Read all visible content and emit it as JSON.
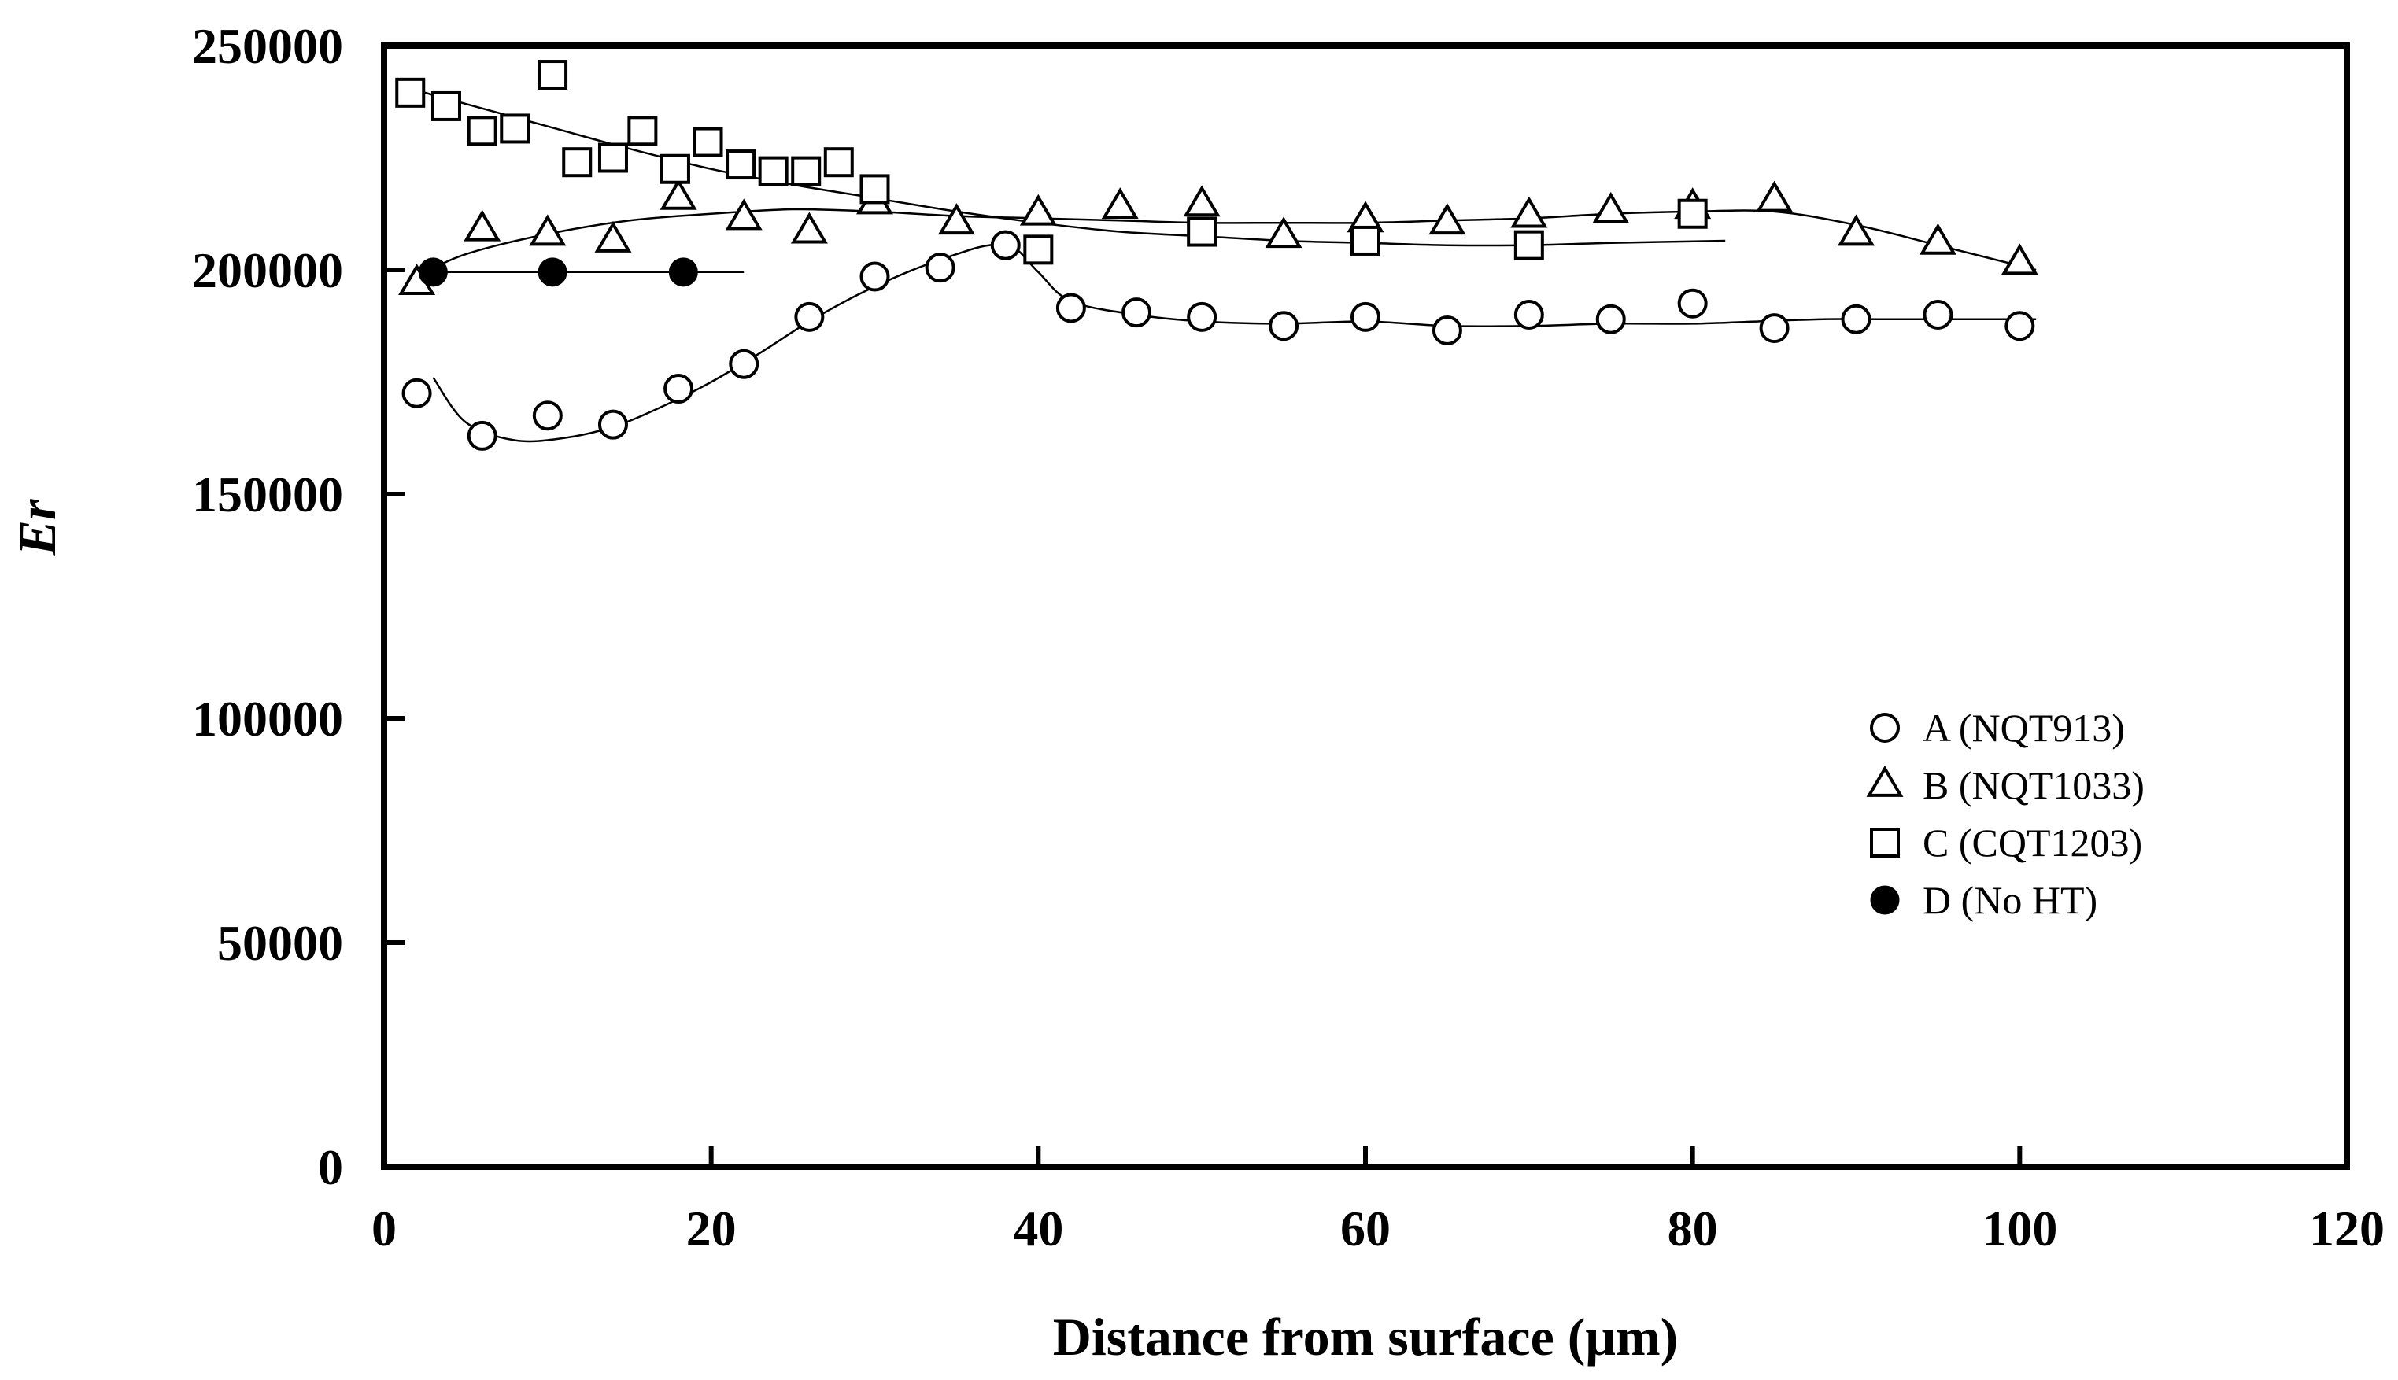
{
  "chart_data": {
    "type": "scatter",
    "title": "",
    "xlabel": "Distance from surface (μm)",
    "ylabel": "Er",
    "xlim": [
      0,
      120
    ],
    "ylim": [
      0,
      250000
    ],
    "xticks": [
      0,
      20,
      40,
      60,
      80,
      100,
      120
    ],
    "yticks": [
      0,
      50000,
      100000,
      150000,
      200000,
      250000
    ],
    "xtick_labels": [
      "0",
      "20",
      "40",
      "60",
      "80",
      "100",
      "120"
    ],
    "ytick_labels": [
      "0",
      "50000",
      "100000",
      "150000",
      "200000",
      "250000"
    ],
    "grid": false,
    "legend_position": "center-right",
    "series": [
      {
        "name": "A (NQT913)",
        "marker": "circle-open",
        "x": [
          2,
          6,
          10,
          14,
          18,
          22,
          26,
          30,
          34,
          38,
          42,
          46,
          50,
          55,
          60,
          65,
          70,
          75,
          80,
          85,
          90,
          95,
          100
        ],
        "y": [
          172500,
          163000,
          167500,
          165500,
          173500,
          179000,
          189500,
          198500,
          200500,
          205500,
          191500,
          190500,
          189500,
          187500,
          189500,
          186500,
          190000,
          189000,
          192500,
          187000,
          189000,
          190000,
          187500
        ],
        "trend_x": [
          3,
          5,
          8,
          11,
          14,
          17,
          20,
          23,
          26,
          29,
          32,
          35,
          37,
          38.5,
          40,
          42,
          46,
          50,
          55,
          60,
          65,
          70,
          75,
          80,
          84,
          88,
          92,
          96,
          101
        ],
        "trend_y": [
          176000,
          166000,
          162000,
          162500,
          165000,
          169500,
          175000,
          181500,
          188500,
          194500,
          199500,
          203500,
          205500,
          205000,
          199500,
          193000,
          190000,
          188500,
          188000,
          188500,
          187500,
          187500,
          188000,
          188000,
          188500,
          189000,
          189000,
          189000,
          189000
        ]
      },
      {
        "name": "B (NQT1033)",
        "marker": "triangle-open",
        "x": [
          2,
          6,
          10,
          14,
          18,
          22,
          26,
          30,
          35,
          40,
          45,
          50,
          55,
          60,
          65,
          70,
          75,
          80,
          85,
          90,
          95,
          100
        ],
        "y": [
          197000,
          209000,
          208000,
          206500,
          216000,
          211500,
          208500,
          215000,
          210500,
          212500,
          214000,
          214500,
          207500,
          211000,
          210500,
          212000,
          213000,
          214000,
          215500,
          208000,
          206000,
          201500
        ],
        "trend_x": [
          2,
          5,
          10,
          15,
          20,
          25,
          30,
          35,
          40,
          45,
          50,
          55,
          60,
          65,
          70,
          75,
          80,
          85,
          90,
          95,
          101
        ],
        "trend_y": [
          198500,
          203500,
          208000,
          211000,
          212500,
          213500,
          213000,
          212000,
          211500,
          211000,
          210500,
          210500,
          210500,
          211000,
          211500,
          212500,
          213000,
          213000,
          210000,
          205500,
          200000
        ]
      },
      {
        "name": "C (CQT1203)",
        "marker": "square-open",
        "x": [
          1.6,
          3.8,
          6,
          8,
          10.3,
          11.8,
          14,
          15.8,
          17.8,
          19.8,
          21.8,
          23.8,
          25.8,
          27.8,
          30,
          40,
          50,
          60,
          70,
          80
        ],
        "y": [
          239500,
          236500,
          231000,
          231500,
          243500,
          224000,
          225000,
          231000,
          222500,
          228500,
          223500,
          222000,
          222000,
          224000,
          218000,
          204500,
          208500,
          206500,
          205500,
          212500
        ],
        "trend_x": [
          2,
          5,
          10,
          15,
          20,
          25,
          30,
          35,
          40,
          45,
          50,
          55,
          60,
          65,
          70,
          75,
          82
        ],
        "trend_y": [
          240000,
          237000,
          232000,
          227000,
          222500,
          219000,
          216000,
          213000,
          210500,
          208500,
          207500,
          206500,
          206000,
          205500,
          205500,
          206000,
          206500
        ]
      },
      {
        "name": "D (No HT)",
        "marker": "circle-filled",
        "x": [
          3,
          10.3,
          18.3
        ],
        "y": [
          199500,
          199500,
          199500
        ],
        "trend_x": [
          2.5,
          22
        ],
        "trend_y": [
          199500,
          199500
        ]
      }
    ]
  }
}
